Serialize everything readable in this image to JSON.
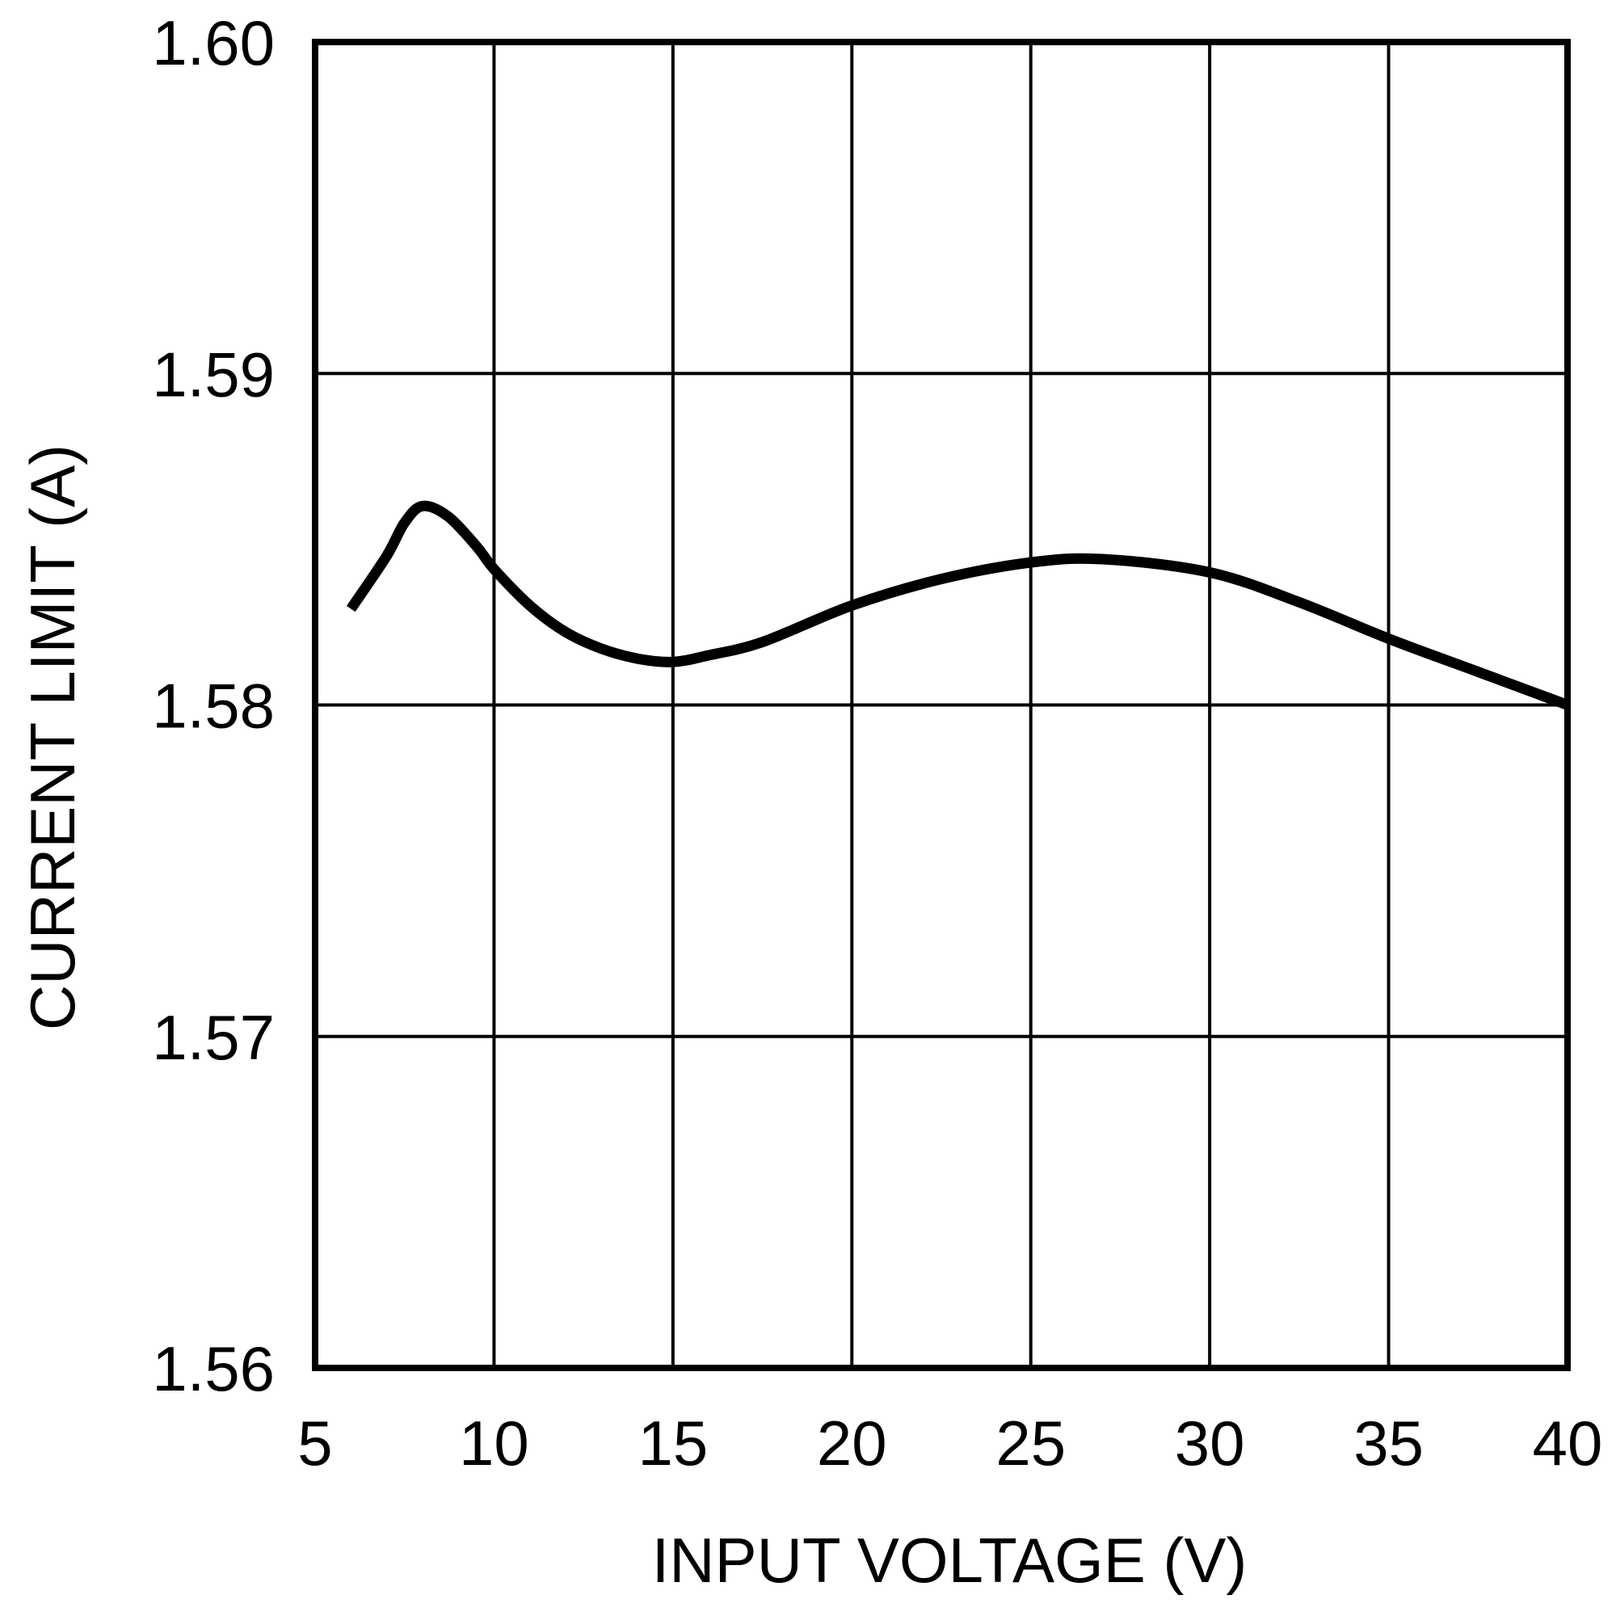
{
  "chart_data": {
    "type": "line",
    "title": "",
    "xlabel": "INPUT VOLTAGE (V)",
    "ylabel": "CURRENT LIMIT (A)",
    "xlim": [
      5,
      40
    ],
    "ylim": [
      1.56,
      1.6
    ],
    "xticks": [
      5,
      10,
      15,
      20,
      25,
      30,
      35,
      40
    ],
    "xtick_labels": [
      "5",
      "10",
      "15",
      "20",
      "25",
      "30",
      "35",
      "40"
    ],
    "yticks": [
      1.56,
      1.57,
      1.58,
      1.59,
      1.6
    ],
    "ytick_labels": [
      "1.56",
      "1.57",
      "1.58",
      "1.59",
      "1.60"
    ],
    "grid": true,
    "legend": null,
    "series": [
      {
        "name": "Current Limit",
        "color": "#000000",
        "x": [
          6,
          7,
          7.5,
          8,
          8.7,
          9.5,
          10,
          11,
          12,
          13,
          14,
          15,
          16,
          17.5,
          20,
          22.5,
          25,
          27,
          30,
          32.5,
          35,
          37.5,
          40
        ],
        "y": [
          1.5829,
          1.5845,
          1.5855,
          1.586,
          1.5857,
          1.5848,
          1.5841,
          1.583,
          1.5822,
          1.5817,
          1.5814,
          1.5813,
          1.5815,
          1.5819,
          1.583,
          1.5838,
          1.5843,
          1.5844,
          1.584,
          1.5831,
          1.582,
          1.581,
          1.58
        ]
      }
    ]
  },
  "colors": {
    "line": "#000000",
    "grid": "#000000",
    "background": "#ffffff"
  }
}
